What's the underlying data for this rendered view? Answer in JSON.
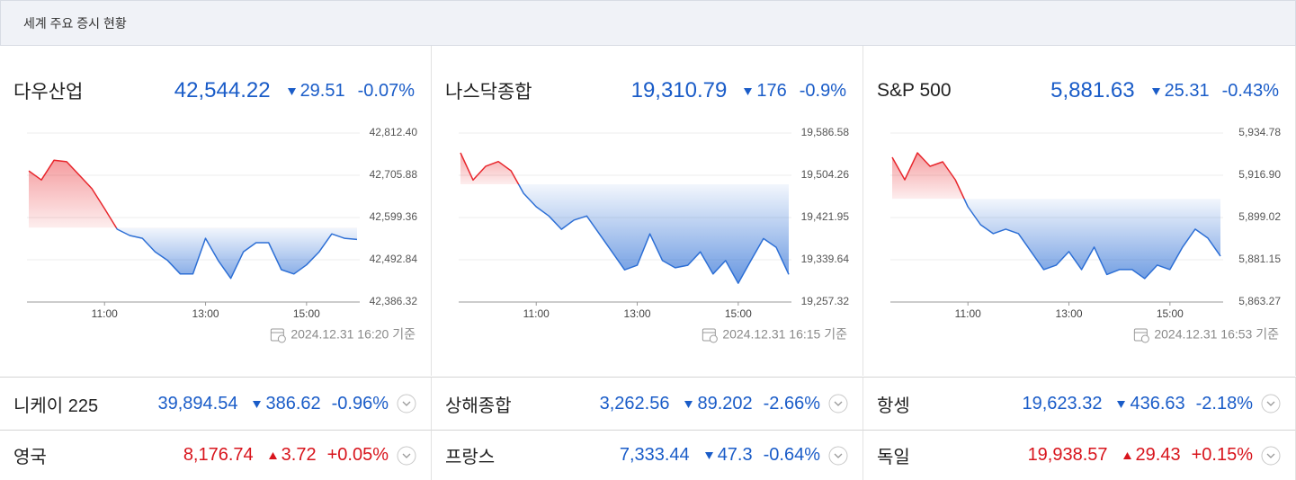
{
  "header": {
    "title": "세계 주요 증시 현황"
  },
  "main_indices": [
    {
      "name": "다우산업",
      "price": "42,544.22",
      "change": "29.51",
      "change_pct": "-0.07%",
      "direction": "down",
      "timestamp": "2024.12.31 16:20 기준"
    },
    {
      "name": "나스닥종합",
      "price": "19,310.79",
      "change": "176",
      "change_pct": "-0.9%",
      "direction": "down",
      "timestamp": "2024.12.31 16:15 기준"
    },
    {
      "name": "S&P 500",
      "price": "5,881.63",
      "change": "25.31",
      "change_pct": "-0.43%",
      "direction": "down",
      "timestamp": "2024.12.31 16:53 기준"
    }
  ],
  "chart_data": [
    {
      "type": "line",
      "x": [
        9.5,
        9.75,
        10,
        10.25,
        10.5,
        10.75,
        11,
        11.25,
        11.5,
        11.75,
        12,
        12.25,
        12.5,
        12.75,
        13,
        13.25,
        13.5,
        13.75,
        14,
        14.25,
        14.5,
        14.75,
        15,
        15.25,
        15.5,
        15.75,
        16
      ],
      "values": [
        42717,
        42694,
        42744,
        42740,
        42706,
        42672,
        42622,
        42570,
        42554,
        42547,
        42513,
        42491,
        42457,
        42457,
        42547,
        42491,
        42446,
        42513,
        42536,
        42536,
        42468,
        42457,
        42480,
        42513,
        42558,
        42547,
        42544
      ],
      "xlim": [
        9.5,
        16
      ],
      "ylim": [
        42386.32,
        42812.4
      ],
      "xticks": [
        {
          "value": 11,
          "label": "11:00"
        },
        {
          "value": 13,
          "label": "13:00"
        },
        {
          "value": 15,
          "label": "15:00"
        }
      ],
      "yticks": [
        {
          "value": 42386.32,
          "label": "42,386.32"
        },
        {
          "value": 42492.84,
          "label": "42,492.84"
        },
        {
          "value": 42599.36,
          "label": "42,599.36"
        },
        {
          "value": 42705.88,
          "label": "42,705.88"
        },
        {
          "value": 42812.4,
          "label": "42,812.40"
        }
      ],
      "grid": true,
      "colors": {
        "above": "#e8262c",
        "below": "#2d6fd5"
      }
    },
    {
      "type": "line",
      "x": [
        9.5,
        9.75,
        10,
        10.25,
        10.5,
        10.75,
        11,
        11.25,
        11.5,
        11.75,
        12,
        12.25,
        12.5,
        12.75,
        13,
        13.25,
        13.5,
        13.75,
        14,
        14.25,
        14.5,
        14.75,
        15,
        15.25,
        15.5,
        15.75,
        16
      ],
      "values": [
        19548,
        19495,
        19522,
        19531,
        19513,
        19469,
        19443,
        19425,
        19399,
        19417,
        19425,
        19390,
        19355,
        19320,
        19329,
        19390,
        19338,
        19324,
        19329,
        19355,
        19312,
        19338,
        19294,
        19338,
        19381,
        19364,
        19311
      ],
      "xlim": [
        9.5,
        16
      ],
      "ylim": [
        19257.32,
        19586.58
      ],
      "xticks": [
        {
          "value": 11,
          "label": "11:00"
        },
        {
          "value": 13,
          "label": "13:00"
        },
        {
          "value": 15,
          "label": "15:00"
        }
      ],
      "yticks": [
        {
          "value": 19257.32,
          "label": "19,257.32"
        },
        {
          "value": 19339.64,
          "label": "19,339.64"
        },
        {
          "value": 19421.95,
          "label": "19,421.95"
        },
        {
          "value": 19504.26,
          "label": "19,504.26"
        },
        {
          "value": 19586.58,
          "label": "19,586.58"
        }
      ],
      "grid": true,
      "colors": {
        "above": "#e8262c",
        "below": "#2d6fd5"
      }
    },
    {
      "type": "line",
      "x": [
        9.5,
        9.75,
        10,
        10.25,
        10.5,
        10.75,
        11,
        11.25,
        11.5,
        11.75,
        12,
        12.25,
        12.5,
        12.75,
        13,
        13.25,
        13.5,
        13.75,
        14,
        14.25,
        14.5,
        14.75,
        15,
        15.25,
        15.5,
        15.75,
        16
      ],
      "values": [
        5924.5,
        5915,
        5926.4,
        5920.7,
        5922.6,
        5915,
        5903.6,
        5896,
        5892.2,
        5894.1,
        5892.2,
        5884.6,
        5877,
        5878.9,
        5884.6,
        5877,
        5886.5,
        5874.9,
        5877,
        5877,
        5873.2,
        5878.9,
        5877,
        5886.5,
        5894.1,
        5890.3,
        5882.7
      ],
      "xlim": [
        9.5,
        16
      ],
      "ylim": [
        5863.27,
        5934.78
      ],
      "xticks": [
        {
          "value": 11,
          "label": "11:00"
        },
        {
          "value": 13,
          "label": "13:00"
        },
        {
          "value": 15,
          "label": "15:00"
        }
      ],
      "yticks": [
        {
          "value": 5863.27,
          "label": "5,863.27"
        },
        {
          "value": 5881.15,
          "label": "5,881.15"
        },
        {
          "value": 5899.02,
          "label": "5,899.02"
        },
        {
          "value": 5916.9,
          "label": "5,916.90"
        },
        {
          "value": 5934.78,
          "label": "5,934.78"
        }
      ],
      "grid": true,
      "colors": {
        "above": "#e8262c",
        "below": "#2d6fd5"
      }
    }
  ],
  "other_indices": [
    [
      {
        "name": "니케이 225",
        "price": "39,894.54",
        "change": "386.62",
        "change_pct": "-0.96%",
        "direction": "down"
      },
      {
        "name": "상해종합",
        "price": "3,262.56",
        "change": "89.202",
        "change_pct": "-2.66%",
        "direction": "down"
      },
      {
        "name": "항셍",
        "price": "19,623.32",
        "change": "436.63",
        "change_pct": "-2.18%",
        "direction": "down"
      }
    ],
    [
      {
        "name": "영국",
        "price": "8,176.74",
        "change": "3.72",
        "change_pct": "+0.05%",
        "direction": "up"
      },
      {
        "name": "프랑스",
        "price": "7,333.44",
        "change": "47.3",
        "change_pct": "-0.64%",
        "direction": "down"
      },
      {
        "name": "독일",
        "price": "19,938.57",
        "change": "29.43",
        "change_pct": "+0.15%",
        "direction": "up"
      }
    ]
  ]
}
